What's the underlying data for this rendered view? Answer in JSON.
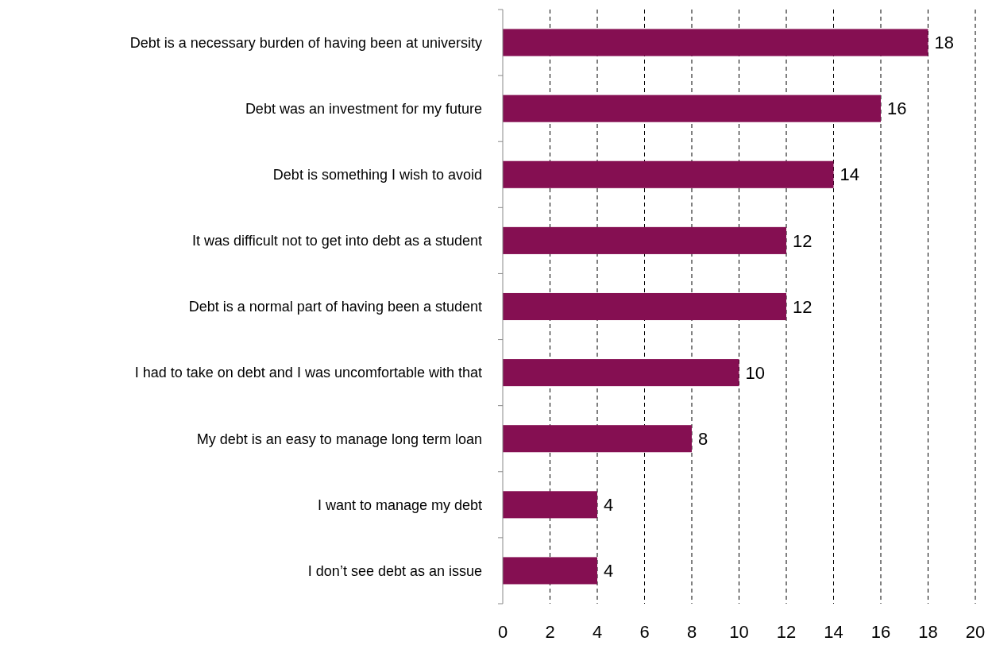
{
  "chart_data": {
    "type": "bar",
    "orientation": "horizontal",
    "categories": [
      "Debt is a necessary burden of having been at university",
      "Debt was an investment for my future",
      "Debt is something I wish to avoid",
      "It was difficult not to get into debt as a student",
      "Debt is a normal part of having been a student",
      "I had to take on debt and I was uncomfortable with that",
      "My debt is an easy to manage long term loan",
      "I want to manage my debt",
      "I don’t see debt as an issue"
    ],
    "values": [
      18,
      16,
      14,
      12,
      12,
      10,
      8,
      4,
      4
    ],
    "color": "#850f52",
    "xlim": [
      0,
      20
    ],
    "xticks": [
      0,
      2,
      4,
      6,
      8,
      10,
      12,
      14,
      16,
      18,
      20
    ],
    "grid": "x",
    "data_labels": true
  }
}
